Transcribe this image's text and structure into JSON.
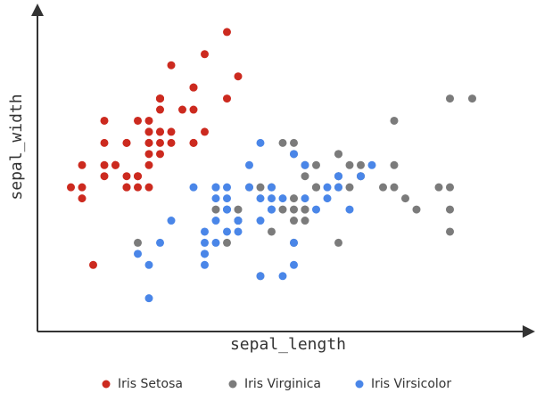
{
  "chart_data": {
    "type": "scatter",
    "x_label": "sepal_length",
    "y_label": "sepal_width",
    "xlim": [
      4.0,
      8.4
    ],
    "ylim": [
      1.7,
      4.6
    ],
    "series": [
      {
        "name": "Iris Setosa",
        "color": "#cc2a1f",
        "x": [
          5.1,
          4.9,
          4.7,
          4.6,
          5.0,
          5.4,
          4.6,
          5.0,
          4.4,
          4.9,
          5.4,
          4.8,
          4.8,
          4.3,
          5.8,
          5.7,
          5.4,
          5.1,
          5.7,
          5.1,
          5.4,
          5.1,
          4.6,
          5.1,
          4.8,
          5.0,
          5.0,
          5.2,
          5.2,
          4.7,
          4.8,
          5.4,
          5.2,
          5.5,
          4.9,
          5.0,
          5.5,
          4.9,
          4.4,
          5.1,
          5.0,
          4.5,
          4.4,
          5.0,
          5.1,
          4.8,
          5.1,
          4.6,
          5.3,
          5.0
        ],
        "values": [
          3.5,
          3.0,
          3.2,
          3.1,
          3.6,
          3.9,
          3.4,
          3.4,
          2.9,
          3.1,
          3.7,
          3.4,
          3.0,
          3.0,
          4.0,
          4.4,
          3.9,
          3.5,
          3.8,
          3.8,
          3.4,
          3.7,
          3.6,
          3.3,
          3.4,
          3.0,
          3.4,
          3.5,
          3.4,
          3.2,
          3.1,
          3.4,
          4.1,
          4.2,
          3.1,
          3.2,
          3.5,
          3.6,
          3.0,
          3.4,
          3.5,
          2.3,
          3.2,
          3.5,
          3.8,
          3.0,
          3.8,
          3.2,
          3.7,
          3.3
        ]
      },
      {
        "name": "Iris Virginica",
        "color": "#7b7b7b",
        "x": [
          6.3,
          5.8,
          7.1,
          6.3,
          6.5,
          7.6,
          4.9,
          7.3,
          6.7,
          7.2,
          6.5,
          6.4,
          6.8,
          5.7,
          5.8,
          6.4,
          6.5,
          7.7,
          7.7,
          6.0,
          6.9,
          5.6,
          7.7,
          6.3,
          6.7,
          7.2,
          6.2,
          6.1,
          6.4,
          7.2,
          7.4,
          7.9,
          6.4,
          6.3,
          6.1,
          7.7,
          6.3,
          6.4,
          6.0,
          6.9,
          6.7,
          6.9,
          5.8,
          6.8,
          6.7,
          6.7,
          6.3,
          6.5,
          6.2,
          5.9
        ],
        "values": [
          3.3,
          2.7,
          3.0,
          2.9,
          3.0,
          3.0,
          2.5,
          2.9,
          2.5,
          3.6,
          3.2,
          2.7,
          3.0,
          2.5,
          2.8,
          3.2,
          3.0,
          3.8,
          2.6,
          2.2,
          3.2,
          2.8,
          2.8,
          2.7,
          3.3,
          3.2,
          2.8,
          3.0,
          2.8,
          3.0,
          2.8,
          3.8,
          2.8,
          2.8,
          2.6,
          3.0,
          3.4,
          3.1,
          3.0,
          3.1,
          3.1,
          3.1,
          2.7,
          3.2,
          3.3,
          3.0,
          2.5,
          3.0,
          3.4,
          3.0
        ]
      },
      {
        "name": "Iris Virsicolor",
        "color": "#4a86e8",
        "x": [
          7.0,
          6.4,
          6.9,
          5.5,
          6.5,
          5.7,
          6.3,
          4.9,
          6.6,
          5.2,
          5.0,
          5.9,
          6.0,
          6.1,
          5.6,
          6.7,
          5.6,
          5.8,
          6.2,
          5.6,
          5.9,
          6.1,
          6.3,
          6.1,
          6.4,
          6.6,
          6.8,
          6.7,
          6.0,
          5.7,
          5.5,
          5.5,
          5.8,
          6.0,
          5.4,
          6.0,
          6.7,
          6.3,
          5.6,
          5.5,
          5.5,
          6.1,
          5.8,
          5.0,
          5.6,
          5.7,
          5.7,
          6.2,
          5.1,
          5.7
        ],
        "values": [
          3.2,
          3.2,
          3.1,
          2.3,
          2.8,
          2.8,
          3.3,
          2.4,
          2.9,
          2.7,
          2.0,
          3.0,
          2.2,
          2.9,
          2.9,
          3.1,
          3.0,
          2.7,
          2.2,
          2.5,
          3.2,
          2.8,
          2.5,
          2.8,
          2.9,
          3.0,
          2.8,
          3.0,
          2.9,
          2.6,
          2.4,
          2.4,
          2.7,
          2.7,
          3.0,
          3.4,
          3.1,
          2.3,
          3.0,
          2.5,
          2.6,
          3.0,
          2.6,
          2.3,
          2.7,
          3.0,
          2.9,
          2.9,
          2.5,
          2.8
        ]
      }
    ]
  }
}
